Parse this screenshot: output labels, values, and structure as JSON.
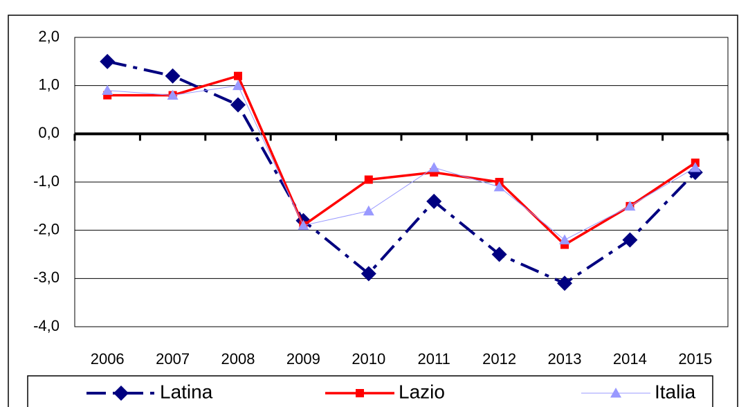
{
  "chart_data": {
    "type": "line",
    "categories": [
      "2006",
      "2007",
      "2008",
      "2009",
      "2010",
      "2011",
      "2012",
      "2013",
      "2014",
      "2015"
    ],
    "series": [
      {
        "name": "Latina",
        "color": "#000080",
        "values": [
          1.5,
          1.2,
          0.6,
          -1.8,
          -2.9,
          -1.4,
          -2.5,
          -3.1,
          -2.2,
          -0.8
        ]
      },
      {
        "name": "Lazio",
        "color": "#ff0000",
        "values": [
          0.8,
          0.8,
          1.2,
          -1.9,
          -0.95,
          -0.8,
          -1.0,
          -2.3,
          -1.5,
          -0.6
        ]
      },
      {
        "name": "Italia",
        "color": "#9999ff",
        "values": [
          0.9,
          0.8,
          1.0,
          -1.9,
          -1.6,
          -0.7,
          -1.1,
          -2.2,
          -1.5,
          -0.7
        ]
      }
    ],
    "ylim": [
      -4,
      2
    ],
    "yticks": [
      {
        "value": -4,
        "label": "-4,0"
      },
      {
        "value": -3,
        "label": "-3,0"
      },
      {
        "value": -2,
        "label": "-2,0"
      },
      {
        "value": -1,
        "label": "-1,0"
      },
      {
        "value": 0,
        "label": "0,0"
      },
      {
        "value": 1,
        "label": "1,0"
      },
      {
        "value": 2,
        "label": "2,0"
      }
    ],
    "grid": true,
    "legend": "bottom"
  }
}
